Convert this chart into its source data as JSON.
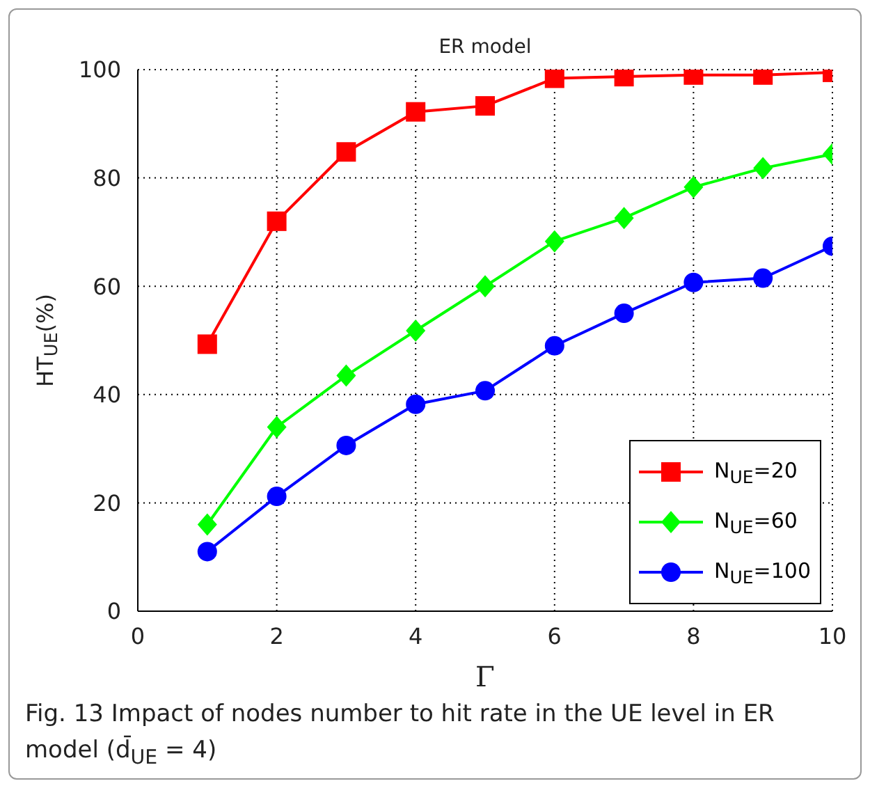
{
  "chart_data": {
    "type": "line",
    "title": "ER model",
    "xlabel": "Γ",
    "ylabel": "HT$_{UE}$(%)",
    "annotations": [
      "Fig. 13 Impact of nodes number to hit rate in the UE level in ER model (d̄$_{UE}$ = 4)"
    ],
    "x": [
      1,
      2,
      3,
      4,
      5,
      6,
      7,
      8,
      9,
      10
    ],
    "series": [
      {
        "name": "N$_{UE}$=20",
        "color": "#ff0000",
        "marker": "square",
        "values": [
          49.3,
          72,
          84.8,
          92.2,
          93.3,
          98.4,
          98.7,
          99,
          99,
          99.5
        ]
      },
      {
        "name": "N$_{UE}$=60",
        "color": "#00ff00",
        "marker": "diamond",
        "values": [
          16,
          34,
          43.5,
          51.8,
          60,
          68.3,
          72.6,
          78.3,
          81.8,
          84.4
        ]
      },
      {
        "name": "N$_{UE}$=100",
        "color": "#0000ff",
        "marker": "circle",
        "values": [
          11,
          21.2,
          30.6,
          38.2,
          40.7,
          49,
          55,
          60.7,
          61.5,
          67.4
        ]
      }
    ],
    "xlim": [
      0,
      10
    ],
    "xticks": [
      0,
      2,
      4,
      6,
      8,
      10
    ],
    "ylim": [
      0,
      100
    ],
    "yticks": [
      0,
      20,
      40,
      60,
      80,
      100
    ],
    "grid": true,
    "legend": "bottom right",
    "line_style": "solid"
  }
}
